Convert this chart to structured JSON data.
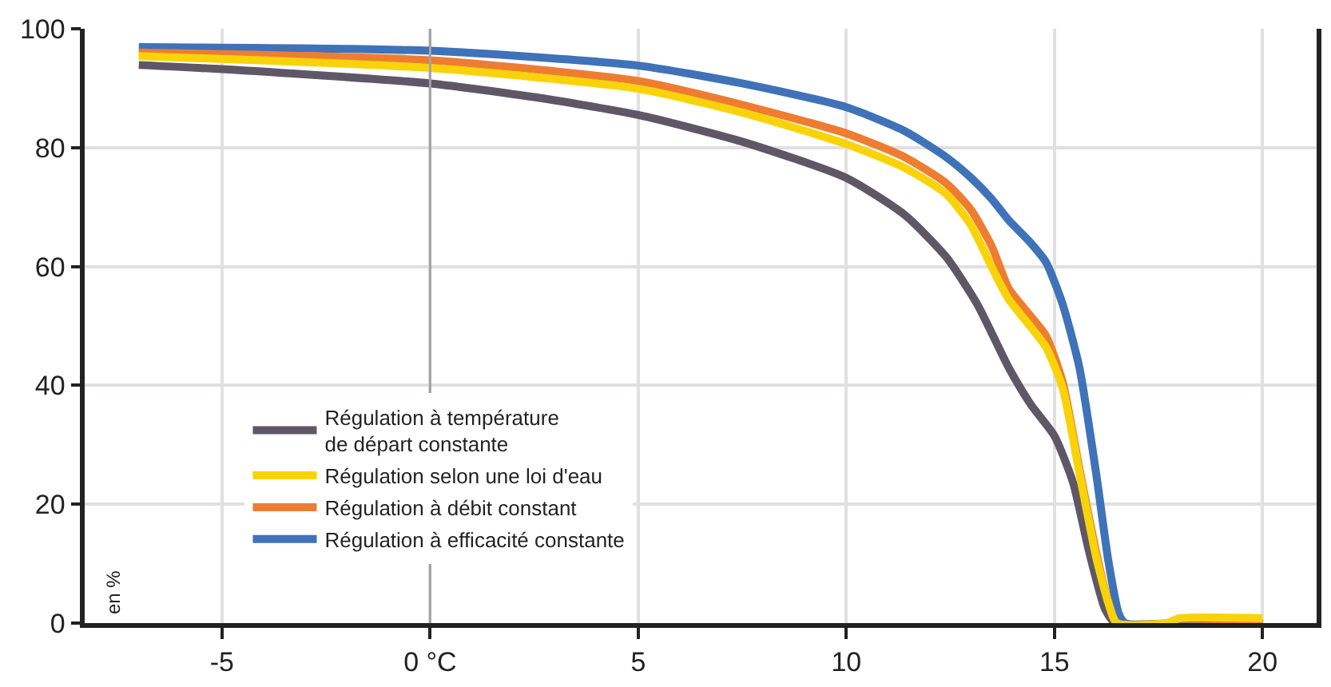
{
  "chart_data": {
    "type": "line",
    "ylabel": "en %",
    "xlim": [
      -8.3,
      21.3
    ],
    "xticks": [
      -5,
      {
        "value": 0,
        "label": "0 °C"
      },
      5,
      10,
      15,
      20
    ],
    "ylim": [
      0,
      100
    ],
    "yticks": [
      0,
      20,
      40,
      60,
      80,
      100
    ],
    "grid": true,
    "legend": "bottom left",
    "marker": "none",
    "line_style": "solid",
    "ref_lines": [
      {
        "axis": "x",
        "value": 0,
        "label": null,
        "color": "#a3a3a3"
      }
    ],
    "series": [
      {
        "name": "Régulation à température\nde départ constante",
        "color": "#5f5766",
        "x": [
          -7,
          -5,
          0,
          2.5,
          5,
          7.5,
          10,
          11.4,
          12.4,
          13.15,
          13.9,
          14.43,
          15.0,
          15.45,
          15.83,
          16.22,
          16.47,
          18,
          20
        ],
        "values": [
          93.9,
          93.2,
          90.8,
          88.5,
          85.5,
          81.0,
          74.9,
          68.7,
          61.6,
          53.6,
          43.0,
          36.8,
          31.5,
          23.6,
          12.1,
          2.3,
          0,
          0,
          0
        ]
      },
      {
        "name": "Régulation selon une loi d'eau",
        "color": "#f9d30a",
        "x": [
          -7,
          0,
          5,
          7.5,
          10,
          11.4,
          12.4,
          13,
          13.5,
          13.9,
          14.4,
          14.8,
          15.2,
          15.6,
          16.0,
          16.3,
          16.5,
          17.7,
          18.0,
          20
        ],
        "values": [
          95.4,
          93.4,
          89.9,
          85.9,
          80.6,
          76.6,
          72.2,
          66.9,
          59.8,
          54.5,
          50.1,
          46.4,
          39.5,
          25.3,
          11.2,
          3.3,
          0,
          0,
          0.8,
          0.8
        ]
      },
      {
        "name": "Régulation à débit constant",
        "color": "#ee7d31",
        "x": [
          -7,
          0,
          5,
          7.5,
          10,
          11.4,
          12.4,
          13,
          13.5,
          13.9,
          14.4,
          14.8,
          15.2,
          15.6,
          16.0,
          16.3,
          16.5,
          20
        ],
        "values": [
          96.0,
          94.7,
          91.2,
          87.2,
          82.4,
          78.4,
          74.0,
          69.5,
          63.3,
          56.3,
          51.9,
          48.3,
          40.5,
          26.0,
          12.0,
          3.5,
          0,
          0
        ]
      },
      {
        "name": "Régulation à efficacité constante",
        "color": "#3f72b8",
        "x": [
          -7,
          0,
          5,
          7.5,
          10,
          11.4,
          12.4,
          13,
          13.5,
          13.9,
          14.4,
          14.8,
          15.2,
          15.6,
          16.0,
          16.3,
          16.55,
          16.7,
          20
        ],
        "values": [
          96.9,
          96.3,
          93.8,
          90.8,
          86.8,
          82.8,
          78.4,
          74.9,
          71.3,
          67.8,
          64.2,
          60.7,
          53.6,
          43.0,
          25.3,
          10.3,
          1.5,
          0,
          0
        ]
      }
    ]
  }
}
